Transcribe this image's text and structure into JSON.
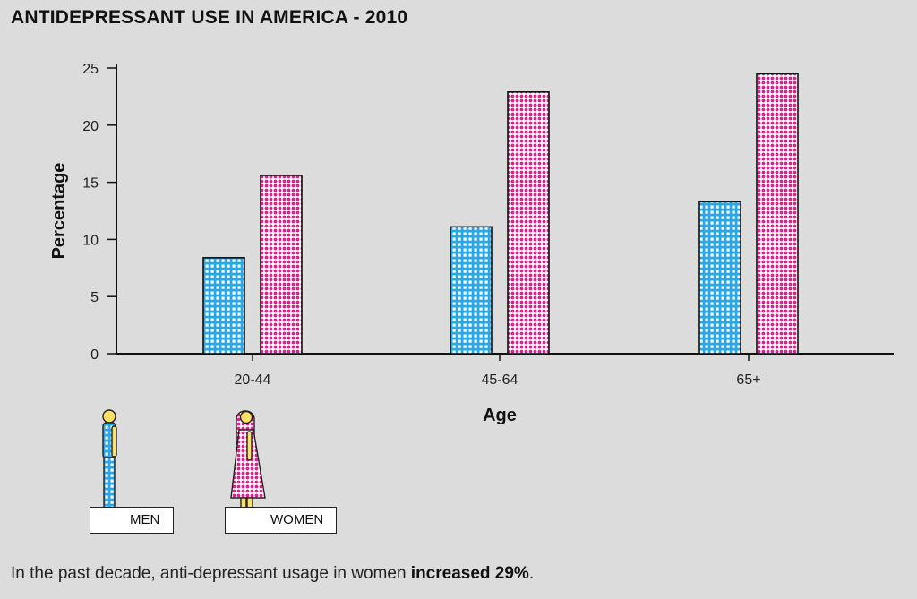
{
  "title": "ANTIDEPRESSANT USE IN AMERICA - 2010",
  "chart_data": {
    "type": "bar",
    "categories": [
      "20-44",
      "45-64",
      "65+"
    ],
    "series": [
      {
        "name": "MEN",
        "values": [
          8.4,
          11.1,
          13.3
        ],
        "color": "#2aa7e6"
      },
      {
        "name": "WOMEN",
        "values": [
          15.6,
          22.9,
          24.5
        ],
        "color": "#e0208c"
      }
    ],
    "xlabel": "Age",
    "ylabel": "Percentage",
    "ylim": [
      0,
      25
    ],
    "yticks": [
      0,
      5,
      10,
      15,
      20,
      25
    ],
    "grid": false
  },
  "legend": {
    "men_label": "MEN",
    "women_label": "WOMEN"
  },
  "caption": {
    "text": "In the past decade, anti-depressant usage in women ",
    "bold": "increased 29%",
    "end": "."
  }
}
